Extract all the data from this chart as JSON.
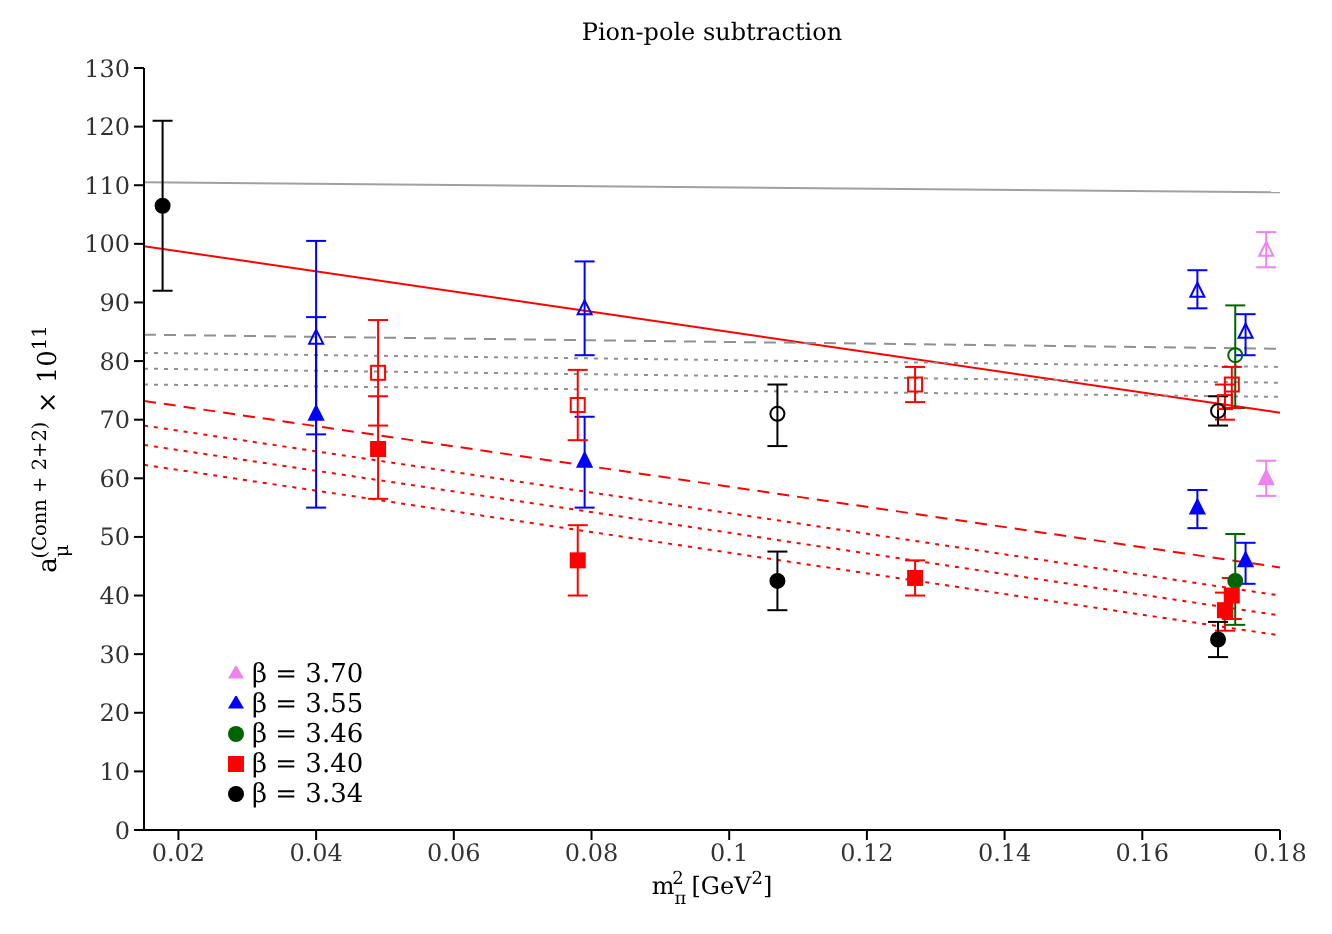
{
  "chart_data": {
    "type": "scatter",
    "title": "Pion-pole subtraction",
    "xlabel": "m$_{π}$$^{2}$ [GeV$^{2}$]",
    "ylabel": "a$_{μ}$$^{(Conn + 2+2)}$ × 10$^{11}$",
    "xlim": [
      0.015,
      0.18
    ],
    "xticks": [
      0.02,
      0.04,
      0.06,
      0.08,
      0.1,
      0.12,
      0.14,
      0.16,
      0.18
    ],
    "ylim": [
      0,
      130
    ],
    "yticks": [
      0,
      10,
      20,
      30,
      40,
      50,
      60,
      70,
      80,
      90,
      100,
      110,
      120,
      130
    ],
    "grid": false,
    "legend": "bottom left",
    "series": [
      {
        "name": "β = 3.70",
        "color": "#ee82ee",
        "marker": "triangle",
        "x": [
          0.178
        ],
        "values": [
          60
        ],
        "errors": [
          [
            57,
            63
          ]
        ]
      },
      {
        "name": "β = 3.55",
        "color": "#0000ff",
        "marker": "triangle",
        "x": [
          0.04,
          0.079,
          0.168,
          0.175
        ],
        "values": [
          71,
          63,
          55,
          46
        ],
        "errors": [
          [
            55,
            87.5
          ],
          [
            55,
            70.5
          ],
          [
            51.5,
            58
          ],
          [
            42,
            49
          ]
        ]
      },
      {
        "name": "β = 3.46",
        "color": "#006400",
        "marker": "circle",
        "x": [
          0.1735
        ],
        "values": [
          42.5
        ],
        "errors": [
          [
            35,
            50.5
          ]
        ]
      },
      {
        "name": "β = 3.40",
        "color": "#ff0000",
        "marker": "square",
        "x": [
          0.049,
          0.078,
          0.127,
          0.172,
          0.173
        ],
        "values": [
          65,
          46,
          43,
          37.5,
          40
        ],
        "errors": [
          [
            56.5,
            74
          ],
          [
            40,
            52
          ],
          [
            40,
            46
          ],
          [
            34,
            40.5
          ],
          [
            36,
            43
          ]
        ]
      },
      {
        "name": "β = 3.34",
        "color": "#000000",
        "marker": "circle",
        "x": [
          0.0177,
          0.107,
          0.171
        ],
        "values": [
          106.5,
          42.5,
          32.5
        ],
        "errors": [
          [
            92,
            121
          ],
          [
            37.5,
            47.5
          ],
          [
            29.5,
            35.5
          ]
        ]
      },
      {
        "color": "#ee82ee",
        "marker": "triangle",
        "x": [
          0.178
        ],
        "values": [
          99
        ],
        "errors": [
          [
            96,
            102
          ]
        ]
      },
      {
        "color": "#0000ff",
        "marker": "triangle",
        "x": [
          0.04,
          0.079,
          0.168,
          0.175
        ],
        "values": [
          84,
          89,
          92,
          85
        ],
        "errors": [
          [
            67.5,
            100.5
          ],
          [
            81,
            97
          ],
          [
            89,
            95.5
          ],
          [
            81,
            88
          ]
        ]
      },
      {
        "color": "#006400",
        "marker": "circle",
        "x": [
          0.1735
        ],
        "values": [
          81
        ],
        "errors": [
          [
            72,
            89.5
          ]
        ]
      },
      {
        "color": "#ff0000",
        "marker": "square",
        "x": [
          0.049,
          0.078,
          0.127,
          0.172,
          0.173
        ],
        "values": [
          78,
          72.5,
          76,
          73,
          76
        ],
        "errors": [
          [
            69,
            87
          ],
          [
            66.5,
            78.5
          ],
          [
            73,
            79
          ],
          [
            70,
            76
          ],
          [
            72,
            79
          ]
        ]
      },
      {
        "color": "#000000",
        "marker": "circle",
        "x": [
          0.107,
          0.171
        ],
        "values": [
          71,
          71.5
        ],
        "errors": [
          [
            65.5,
            76
          ],
          [
            69,
            74
          ]
        ]
      },
      {
        "type": "line",
        "color": "#a0a0a0",
        "line_style": "solid",
        "x": [
          0.015,
          0.18
        ],
        "values": [
          110.5,
          108.8
        ]
      },
      {
        "type": "line",
        "color": "#ff0000",
        "line_style": "solid",
        "x": [
          0.015,
          0.18
        ],
        "values": [
          99.6,
          71.2
        ]
      },
      {
        "type": "line",
        "color": "#909090",
        "line_style": "dashed",
        "x": [
          0.015,
          0.18
        ],
        "values": [
          84.5,
          82.1
        ]
      },
      {
        "type": "line",
        "color": "#909090",
        "line_style": "dotted",
        "x": [
          0.015,
          0.18
        ],
        "values": [
          81.4,
          79
        ]
      },
      {
        "type": "line",
        "color": "#909090",
        "line_style": "dotted",
        "x": [
          0.015,
          0.18
        ],
        "values": [
          78.7,
          76.3
        ]
      },
      {
        "type": "line",
        "color": "#909090",
        "line_style": "dotted",
        "x": [
          0.015,
          0.18
        ],
        "values": [
          76,
          73.9
        ]
      },
      {
        "type": "line",
        "color": "#ff0000",
        "line_style": "dashed",
        "x": [
          0.015,
          0.18
        ],
        "values": [
          73.2,
          44.8
        ]
      },
      {
        "type": "line",
        "color": "#ff0000",
        "line_style": "dotted",
        "x": [
          0.015,
          0.18
        ],
        "values": [
          69,
          40
        ]
      },
      {
        "type": "line",
        "color": "#ff0000",
        "line_style": "dotted",
        "x": [
          0.015,
          0.18
        ],
        "values": [
          65.7,
          36.6
        ]
      },
      {
        "type": "line",
        "color": "#ff0000",
        "line_style": "dotted",
        "x": [
          0.015,
          0.18
        ],
        "values": [
          62.3,
          33.2
        ]
      }
    ]
  }
}
